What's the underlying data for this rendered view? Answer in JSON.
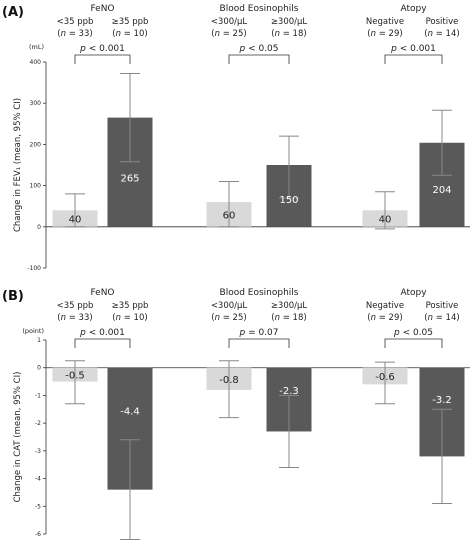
{
  "chart_data": [
    {
      "panel": "(A)",
      "type": "bar",
      "ylabel": "Change in FEV₁ (mean, 95% CI)",
      "unit": "(mL)",
      "ylim": [
        -100,
        400
      ],
      "yticks": [
        "400",
        "300",
        "200",
        "100",
        "0",
        "-100"
      ],
      "yticks_values": [
        400,
        300,
        200,
        100,
        0,
        -100
      ],
      "groups": [
        {
          "title": "FeNO",
          "p": "p < 0.001",
          "bars": [
            {
              "cat": "<35 ppb",
              "n": "(n = 33)",
              "value": 40,
              "label": "40",
              "ci": [
                0,
                80
              ]
            },
            {
              "cat": "≥35 ppb",
              "n": "(n = 10)",
              "value": 265,
              "label": "265",
              "ci": [
                158,
                372
              ]
            }
          ]
        },
        {
          "title": "Blood Eosinophils",
          "p": "p < 0.05",
          "bars": [
            {
              "cat": "<300/μL",
              "n": "(n = 25)",
              "value": 60,
              "label": "60",
              "ci": [
                0,
                110
              ]
            },
            {
              "cat": "≥300/μL",
              "n": "(n = 18)",
              "value": 150,
              "label": "150",
              "ci": [
                70,
                220
              ]
            }
          ]
        },
        {
          "title": "Atopy",
          "p": "p < 0.001",
          "bars": [
            {
              "cat": "Negative",
              "n": "(n = 29)",
              "value": 40,
              "label": "40",
              "ci": [
                -5,
                85
              ]
            },
            {
              "cat": "Positive",
              "n": "(n = 14)",
              "value": 204,
              "label": "204",
              "ci": [
                125,
                283
              ]
            }
          ]
        }
      ]
    },
    {
      "panel": "(B)",
      "type": "bar",
      "ylabel": "Change in CAT (mean, 95% CI)",
      "unit": "(point)",
      "ylim": [
        -6,
        1
      ],
      "yticks": [
        "1",
        "0",
        "-1",
        "-2",
        "-3",
        "-4",
        "-5",
        "-6"
      ],
      "yticks_values": [
        1,
        0,
        -1,
        -2,
        -3,
        -4,
        -5,
        -6
      ],
      "groups": [
        {
          "title": "FeNO",
          "p": "p < 0.001",
          "bars": [
            {
              "cat": "<35 ppb",
              "n": "(n = 33)",
              "value": -0.5,
              "label": "-0.5",
              "ci": [
                -1.3,
                0.25
              ]
            },
            {
              "cat": "≥35 ppb",
              "n": "(n = 10)",
              "value": -4.4,
              "label": "-4.4",
              "ci": [
                -6.2,
                -2.6
              ]
            }
          ]
        },
        {
          "title": "Blood Eosinophils",
          "p": "p = 0.07",
          "bars": [
            {
              "cat": "<300/μL",
              "n": "(n = 25)",
              "value": -0.8,
              "label": "-0.8",
              "ci": [
                -1.8,
                0.25
              ]
            },
            {
              "cat": "≥300/μL",
              "n": "(n = 18)",
              "value": -2.3,
              "label": "-2.3",
              "ci": [
                -3.6,
                -1.0
              ]
            }
          ]
        },
        {
          "title": "Atopy",
          "p": "p < 0.05",
          "bars": [
            {
              "cat": "Negative",
              "n": "(n = 29)",
              "value": -0.6,
              "label": "-0.6",
              "ci": [
                -1.3,
                0.2
              ]
            },
            {
              "cat": "Positive",
              "n": "(n = 14)",
              "value": -3.2,
              "label": "-3.2",
              "ci": [
                -4.9,
                -1.5
              ]
            }
          ]
        }
      ]
    }
  ],
  "colors": {
    "low": "#d9d9d9",
    "high": "#595959",
    "low_text": "#222222",
    "high_text": "#ffffff",
    "whisker": "#888888"
  }
}
